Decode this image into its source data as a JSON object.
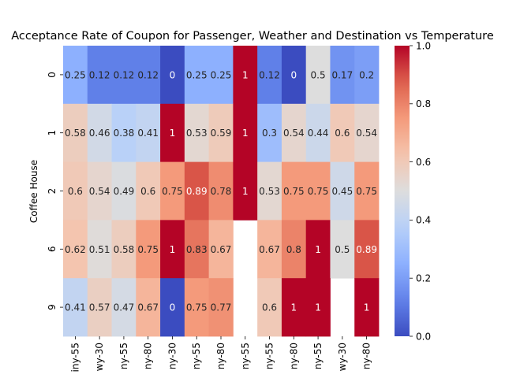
{
  "chart_data": {
    "type": "heatmap",
    "title": "Acceptance Rate of Coupon for Passenger, Weather and Destination vs Temperature",
    "ylabel": "Coffee House",
    "xlabel": "",
    "rows": [
      "0",
      "1",
      "2",
      "6",
      "9"
    ],
    "columns": [
      "iny-55",
      "wy-30",
      "ny-55",
      "ny-80",
      "ny-30",
      "ny-55",
      "ny-80",
      "ny-55",
      "ny-55",
      "ny-80",
      "ny-55",
      "wy-30",
      "ny-80"
    ],
    "values": [
      [
        0.25,
        0.12,
        0.12,
        0.12,
        0,
        0.25,
        0.25,
        1,
        0.12,
        0,
        0.5,
        0.17,
        0.2
      ],
      [
        0.58,
        0.46,
        0.38,
        0.41,
        1,
        0.53,
        0.59,
        1,
        0.3,
        0.54,
        0.44,
        0.6,
        0.54
      ],
      [
        0.6,
        0.54,
        0.49,
        0.6,
        0.75,
        0.89,
        0.78,
        1,
        0.53,
        0.75,
        0.75,
        0.45,
        0.75
      ],
      [
        0.62,
        0.51,
        0.58,
        0.75,
        1,
        0.83,
        0.67,
        null,
        0.67,
        0.8,
        1,
        0.5,
        0.89
      ],
      [
        0.41,
        0.57,
        0.47,
        0.67,
        0,
        0.75,
        0.77,
        null,
        0.6,
        1,
        1,
        null,
        1
      ]
    ],
    "colormap": "coolwarm",
    "vmin": 0,
    "vmax": 1,
    "colorbar_ticks": [
      "0.0",
      "0.2",
      "0.4",
      "0.6",
      "0.8",
      "1.0"
    ],
    "annotations": true
  }
}
